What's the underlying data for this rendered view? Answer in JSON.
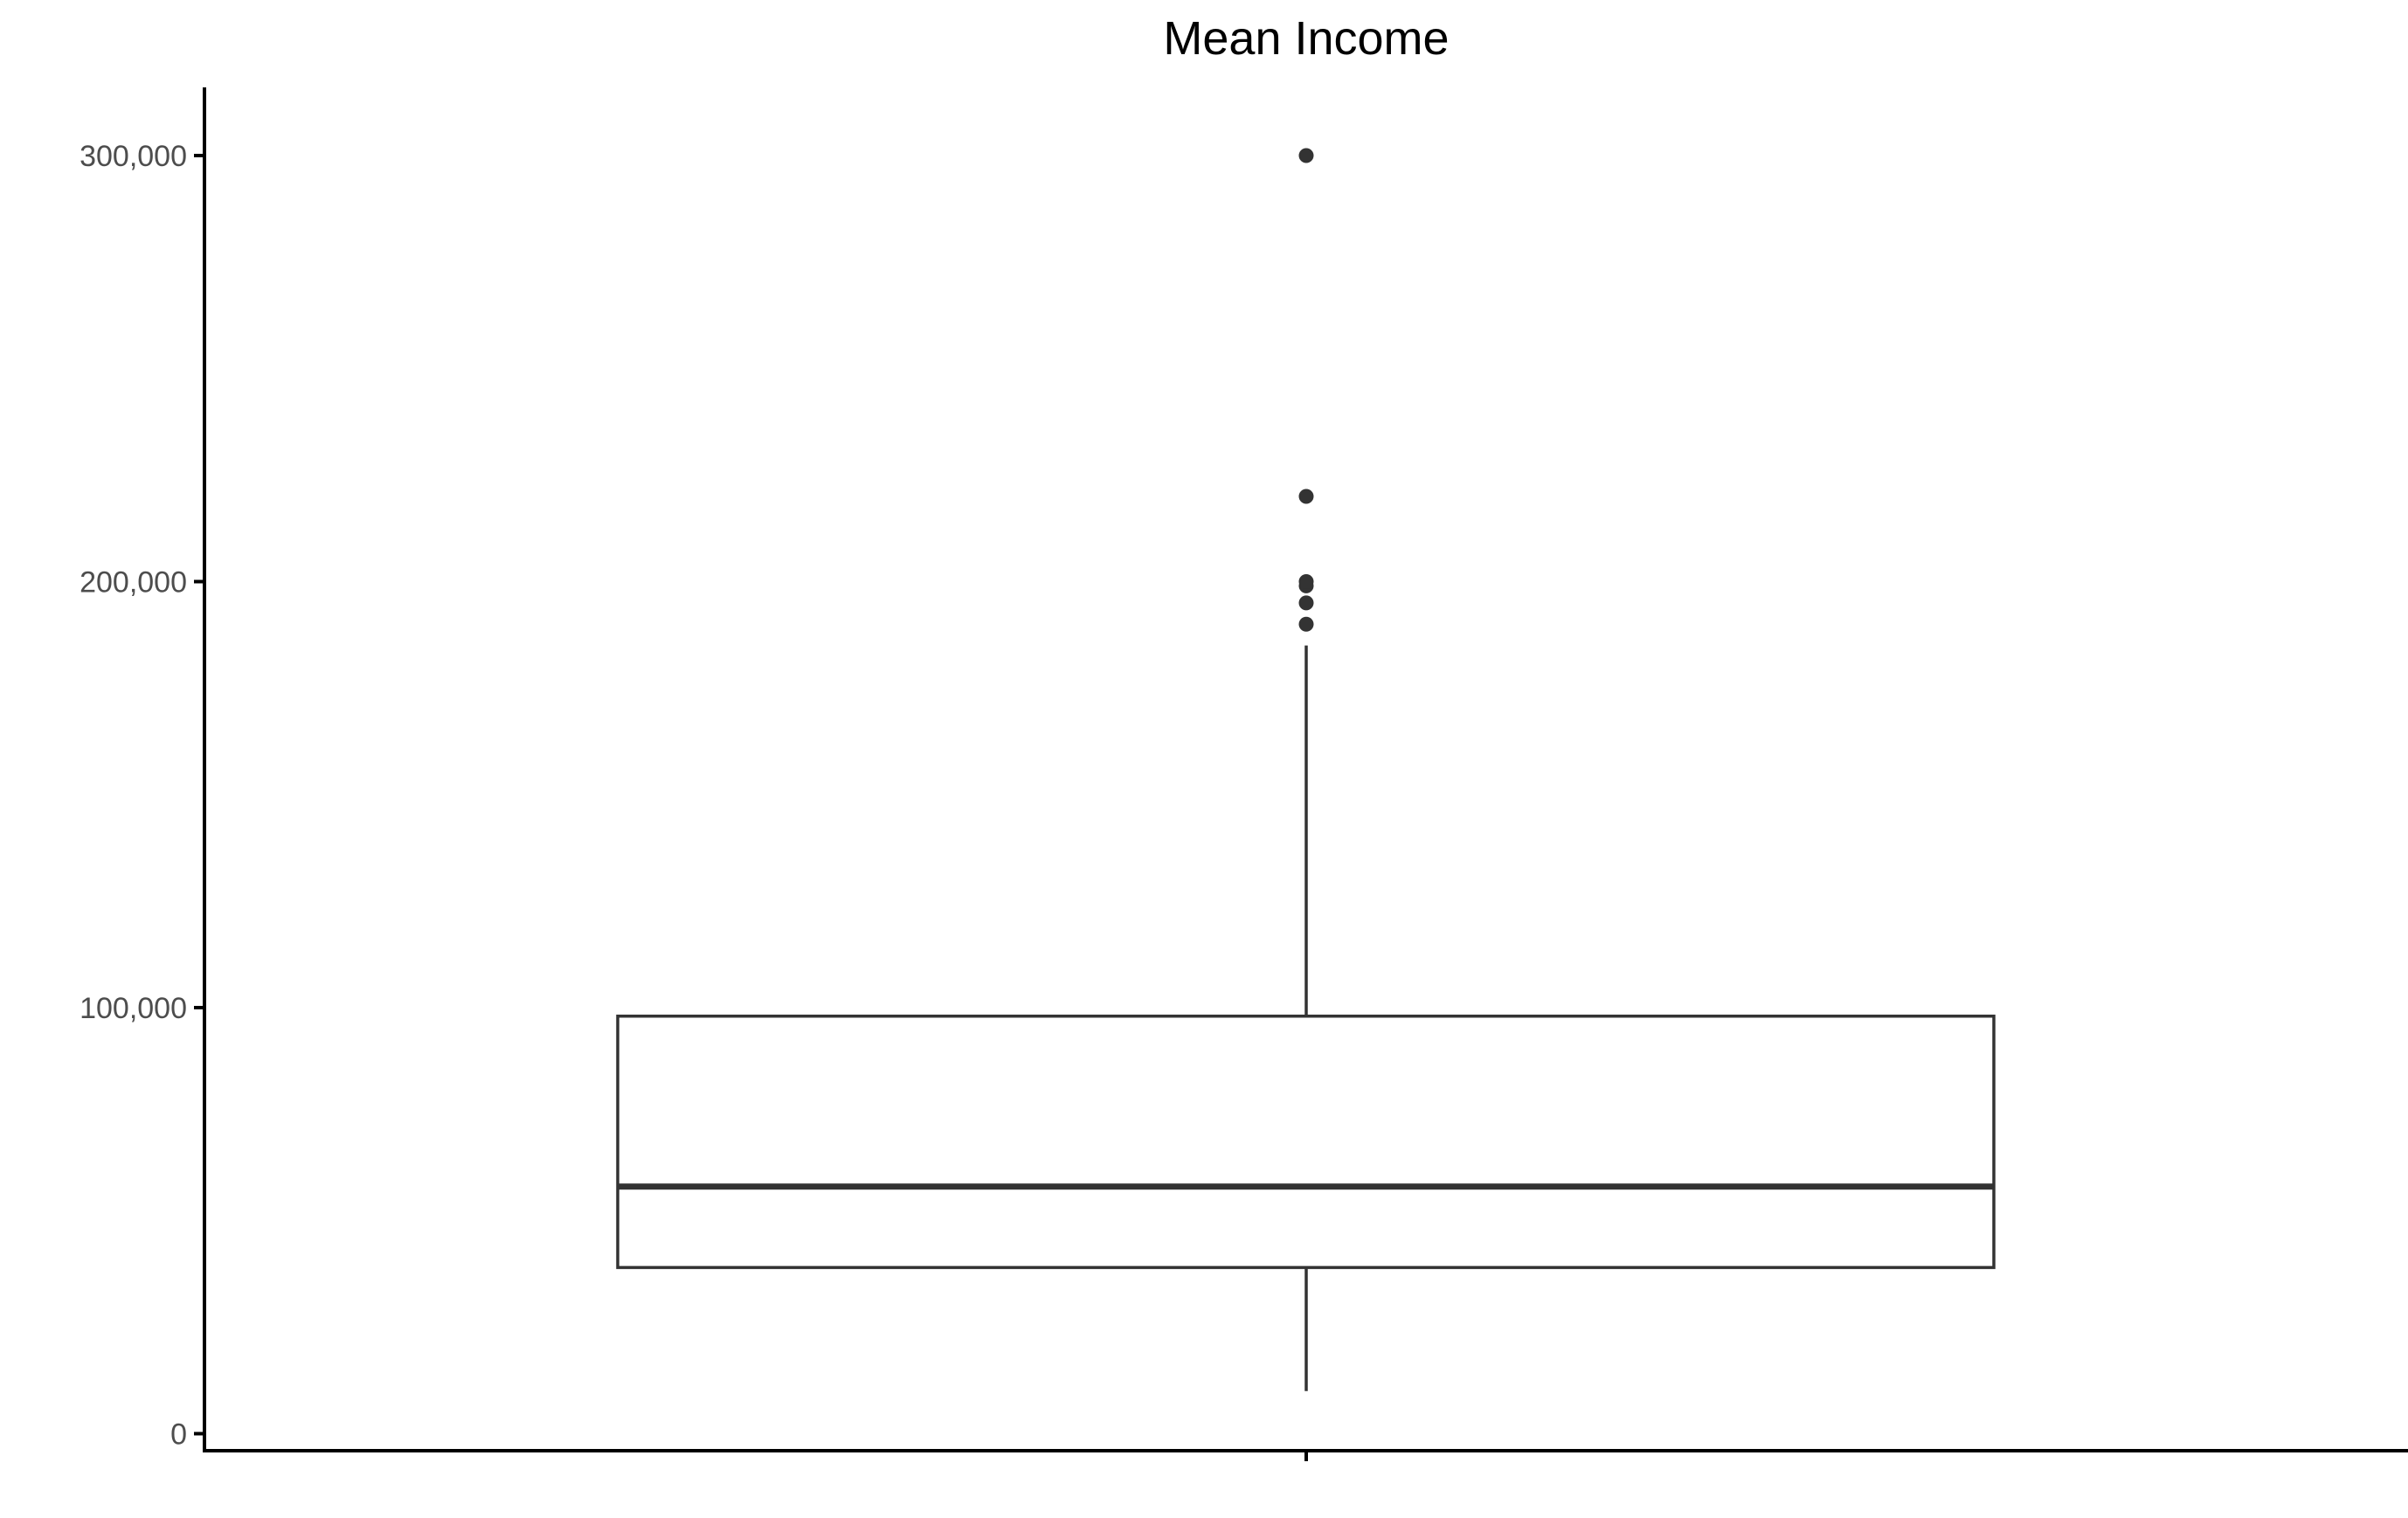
{
  "chart_data": {
    "type": "boxplot",
    "title": "Mean Income",
    "xlabel": "",
    "ylabel": "",
    "ylim": [
      -4000,
      316000
    ],
    "y_ticks": [
      {
        "value": 0,
        "label": "0"
      },
      {
        "value": 100000,
        "label": "100,000"
      },
      {
        "value": 200000,
        "label": "200,000"
      },
      {
        "value": 300000,
        "label": "300,000"
      }
    ],
    "grid": false,
    "legend": "none",
    "box": {
      "whisker_low": 10000,
      "q1": 39000,
      "median": 58000,
      "q3": 98000,
      "whisker_high": 185000
    },
    "outliers": [
      190000,
      195000,
      199000,
      200000,
      220000,
      300000
    ],
    "colors": {
      "line": "#333333",
      "axis": "#000000",
      "tick_label": "#4d4d4d",
      "point": "#333333",
      "background": "#ffffff"
    }
  }
}
